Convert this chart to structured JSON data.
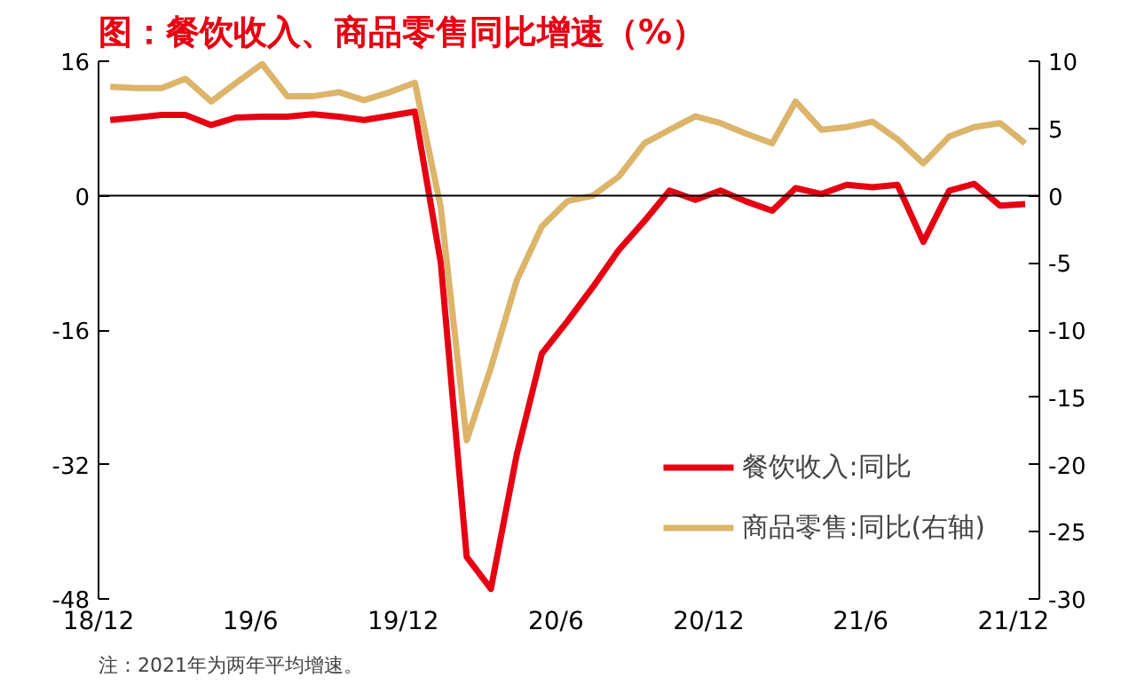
{
  "chart_data": {
    "type": "line",
    "title": "图：餐饮收入、商品零售同比增速（%）",
    "x": [
      "2018-12-15",
      "2019-01-15",
      "2019-02-15",
      "2019-03-15",
      "2019-04-15",
      "2019-05-15",
      "2019-06-15",
      "2019-07-15",
      "2019-08-15",
      "2019-09-15",
      "2019-10-15",
      "2019-11-15",
      "2019-12-15",
      "2020-01-15",
      "2020-02-15",
      "2020-03-15",
      "2020-04-15",
      "2020-05-15",
      "2020-06-15",
      "2020-07-15",
      "2020-08-15",
      "2020-09-15",
      "2020-10-15",
      "2020-11-15",
      "2020-12-15",
      "2021-01-15",
      "2021-02-15",
      "2021-03-15",
      "2021-04-15",
      "2021-05-15",
      "2021-06-15",
      "2021-07-15",
      "2021-08-15",
      "2021-09-15",
      "2021-10-15",
      "2021-11-15",
      "2021-12-15"
    ],
    "series": [
      {
        "name": "餐饮收入:同比",
        "color": "#e60012",
        "values": [
          9.0,
          9.3,
          9.6,
          9.6,
          8.4,
          9.3,
          9.4,
          9.4,
          9.7,
          9.4,
          9.0,
          9.5,
          10.0,
          -8.0,
          -43.0,
          -46.8,
          -30.8,
          -18.8,
          -14.9,
          -10.9,
          -6.5,
          -3.0,
          0.6,
          -0.5,
          0.6,
          -0.7,
          -1.8,
          0.9,
          0.2,
          1.3,
          1.0,
          1.3,
          -5.5,
          0.6,
          1.4,
          -1.2,
          -1.0
        ]
      },
      {
        "name": "商品零售:同比(右轴)",
        "color": "#dcb46a",
        "axis": "y2",
        "values": [
          8.1,
          8.0,
          8.0,
          8.7,
          7.0,
          8.4,
          9.8,
          7.4,
          7.4,
          7.7,
          7.1,
          7.7,
          8.4,
          -0.9,
          -18.2,
          -12.8,
          -6.3,
          -2.3,
          -0.4,
          0.0,
          1.4,
          3.9,
          4.9,
          5.9,
          5.4,
          4.6,
          3.9,
          7.0,
          4.9,
          5.1,
          5.5,
          4.2,
          2.4,
          4.4,
          5.1,
          5.4,
          3.9
        ]
      }
    ],
    "xlim": [
      "2018-12-01",
      "2022-01-01"
    ],
    "xticks": [
      {
        "value": "2018-12-01",
        "label": "18/12"
      },
      {
        "value": "2019-06-01",
        "label": "19/6"
      },
      {
        "value": "2019-12-01",
        "label": "19/12"
      },
      {
        "value": "2020-06-01",
        "label": "20/6"
      },
      {
        "value": "2020-12-01",
        "label": "20/12"
      },
      {
        "value": "2021-06-01",
        "label": "21/6"
      },
      {
        "value": "2021-12-01",
        "label": "21/12"
      }
    ],
    "ylim": [
      -48,
      16
    ],
    "yticks": [
      16,
      0,
      -16,
      -32,
      -48
    ],
    "y2lim": [
      -30,
      10
    ],
    "y2ticks": [
      10,
      5,
      0,
      -5,
      -10,
      -15,
      -20,
      -25,
      -30
    ],
    "ref_lines": [
      {
        "axis": "y",
        "value": 0,
        "color": "#000000"
      }
    ],
    "legend": "bottom right",
    "grid": false,
    "annotations": [
      "注：2021年为两年平均增速。"
    ]
  }
}
